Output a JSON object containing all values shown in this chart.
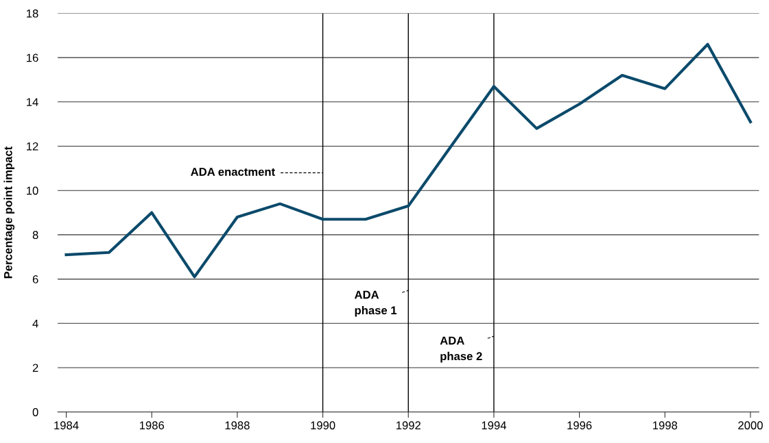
{
  "chart_data": {
    "type": "line",
    "ylabel": "Percentage point impact",
    "x": [
      1984,
      1985,
      1986,
      1987,
      1988,
      1989,
      1990,
      1991,
      1992,
      1993,
      1994,
      1995,
      1996,
      1997,
      1998,
      1999,
      2000
    ],
    "series": [
      {
        "color": "#0b4a6b",
        "values": [
          7.1,
          7.2,
          9.0,
          6.1,
          8.8,
          9.4,
          8.7,
          8.7,
          9.3,
          12.0,
          14.7,
          12.8,
          13.9,
          15.2,
          14.6,
          16.6,
          13.1
        ]
      }
    ],
    "xlim": [
      1983.8,
      2000.2
    ],
    "xticks": [
      1984,
      1986,
      1988,
      1990,
      1992,
      1994,
      1996,
      1998,
      2000
    ],
    "ylim": [
      0,
      18
    ],
    "yticks": [
      0,
      2,
      4,
      6,
      8,
      10,
      12,
      14,
      16,
      18
    ],
    "grid": "y",
    "line_style": "solid",
    "marker": "none",
    "ref_lines": [
      {
        "axis": "x",
        "value": 1990,
        "label": "ADA enactment",
        "color": "#000000"
      },
      {
        "axis": "x",
        "value": 1992,
        "label": "ADA\nphase 1",
        "color": "#000000"
      },
      {
        "axis": "x",
        "value": 1994,
        "label": "ADA\nphase 2",
        "color": "#000000"
      }
    ]
  }
}
